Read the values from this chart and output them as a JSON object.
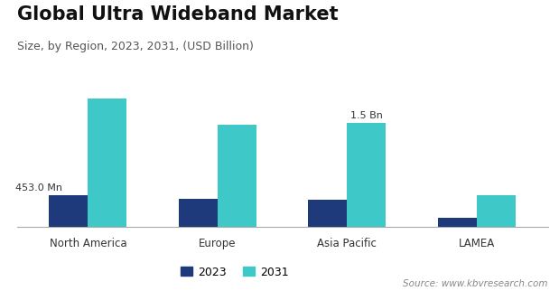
{
  "title": "Global Ultra Wideband Market",
  "subtitle": "Size, by Region, 2023, 2031, (USD Billion)",
  "categories": [
    "North America",
    "Europe",
    "Asia Pacific",
    "LAMEA"
  ],
  "values_2023": [
    0.453,
    0.4,
    0.39,
    0.13
  ],
  "values_2031": [
    1.85,
    1.48,
    1.5,
    0.46
  ],
  "color_2023": "#1e3a7a",
  "color_2031": "#3ec8c8",
  "ann_na_text": "453.0 Mn",
  "ann_ap_text": "1.5 Bn",
  "source_text": "Source: www.kbvresearch.com",
  "ylim": [
    0,
    2.1
  ],
  "legend_labels": [
    "2023",
    "2031"
  ],
  "background_color": "#ffffff",
  "title_fontsize": 15,
  "subtitle_fontsize": 9,
  "bar_width": 0.3
}
